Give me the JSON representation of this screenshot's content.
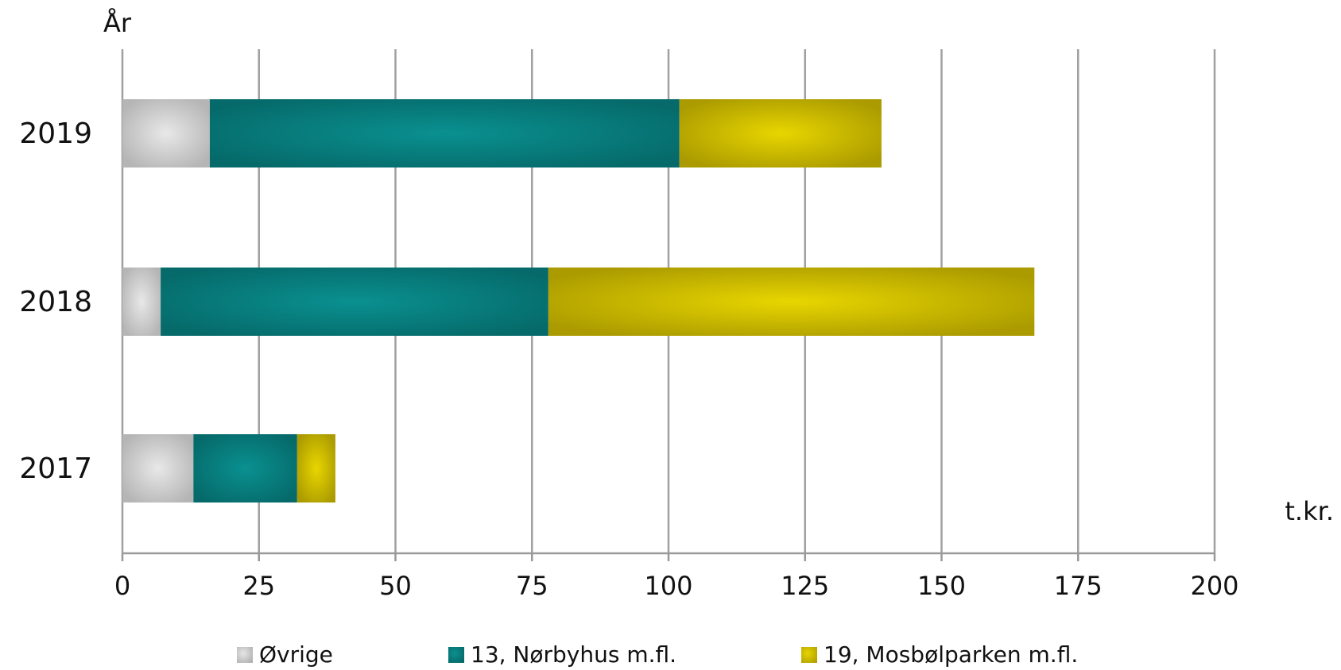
{
  "chart_data": {
    "type": "bar",
    "orientation": "horizontal",
    "stacked": true,
    "title": "",
    "ylabel": "År",
    "xlabel": "t.kr.",
    "categories": [
      "2019",
      "2018",
      "2017"
    ],
    "xlim": [
      0,
      200
    ],
    "xticks": [
      0,
      25,
      50,
      75,
      100,
      125,
      150,
      175,
      200
    ],
    "grid": true,
    "legend_position": "bottom",
    "series": [
      {
        "name": "Øvrige",
        "values": [
          16,
          7,
          13
        ],
        "color": "#c9c9c9"
      },
      {
        "name": "13, Nørbyhus m.fl.",
        "values": [
          86,
          71,
          19
        ],
        "color": "#058585"
      },
      {
        "name": "19, Mosbølparken m.fl.",
        "values": [
          37,
          89,
          7
        ],
        "color": "#d9c800"
      }
    ]
  },
  "colors": {
    "gridline": "#a0a0a0",
    "axis": "#999999",
    "text": "#111111"
  }
}
